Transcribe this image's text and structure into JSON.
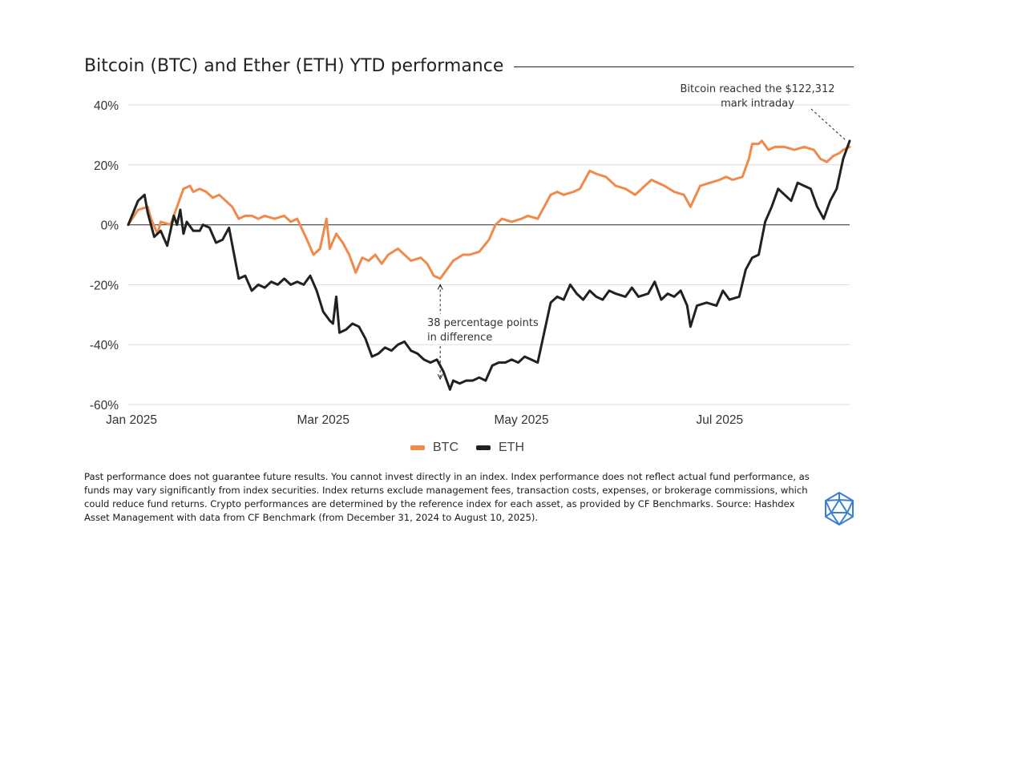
{
  "title": "Bitcoin (BTC) and Ether (ETH) YTD performance",
  "annotations": {
    "btc_high": "Bitcoin reached the $122,312 mark intraday",
    "difference": "38 percentage points in difference"
  },
  "footnote": "Past performance does not guarantee future results. You cannot invest directly in an index. Index performance does not reflect actual fund performance, as funds may vary significantly from index securities. Index returns exclude management fees, transaction costs, expenses, or brokerage commissions, which could reduce fund returns. Crypto performances are determined by the reference index for each asset, as provided by CF Benchmarks. Source: Hashdex Asset Management with data from CF Benchmark (from December 31, 2024 to August 10, 2025).",
  "logo_icon": "icosahedron-logo-icon",
  "colors": {
    "btc": "#f0894a",
    "eth": "#1e2220",
    "grid": "#dddddd",
    "zero": "#555555",
    "logo": "#3b7fd4"
  },
  "chart_data": {
    "type": "line",
    "title": "Bitcoin (BTC) and Ether (ETH) YTD performance",
    "xlabel": "",
    "ylabel": "",
    "x_ticks": [
      {
        "date": "2025-01-01",
        "label": "Jan 2025"
      },
      {
        "date": "2025-03-01",
        "label": "Mar 2025"
      },
      {
        "date": "2025-05-01",
        "label": "May 2025"
      },
      {
        "date": "2025-07-01",
        "label": "Jul 2025"
      }
    ],
    "xlim": [
      "2024-12-31",
      "2025-08-10"
    ],
    "ylim": [
      -60,
      40
    ],
    "y_ticks": [
      40,
      20,
      0,
      -20,
      -40,
      -60
    ],
    "y_tick_labels": [
      "40%",
      "20%",
      "0%",
      "-20%",
      "-40%",
      "-60%"
    ],
    "grid": true,
    "legend": "bottom-center",
    "series": [
      {
        "name": "BTC",
        "color": "#f0894a",
        "points": [
          [
            "2024-12-31",
            0
          ],
          [
            "2025-01-03",
            5
          ],
          [
            "2025-01-06",
            6
          ],
          [
            "2025-01-07",
            2
          ],
          [
            "2025-01-09",
            -3
          ],
          [
            "2025-01-10",
            1
          ],
          [
            "2025-01-13",
            0
          ],
          [
            "2025-01-15",
            6
          ],
          [
            "2025-01-17",
            12
          ],
          [
            "2025-01-19",
            13
          ],
          [
            "2025-01-20",
            11
          ],
          [
            "2025-01-22",
            12
          ],
          [
            "2025-01-24",
            11
          ],
          [
            "2025-01-26",
            9
          ],
          [
            "2025-01-28",
            10
          ],
          [
            "2025-01-30",
            8
          ],
          [
            "2025-02-01",
            6
          ],
          [
            "2025-02-03",
            2
          ],
          [
            "2025-02-05",
            3
          ],
          [
            "2025-02-07",
            3
          ],
          [
            "2025-02-09",
            2
          ],
          [
            "2025-02-11",
            3
          ],
          [
            "2025-02-14",
            2
          ],
          [
            "2025-02-17",
            3
          ],
          [
            "2025-02-19",
            1
          ],
          [
            "2025-02-21",
            2
          ],
          [
            "2025-02-24",
            -5
          ],
          [
            "2025-02-26",
            -10
          ],
          [
            "2025-02-28",
            -8
          ],
          [
            "2025-03-02",
            2
          ],
          [
            "2025-03-03",
            -8
          ],
          [
            "2025-03-05",
            -3
          ],
          [
            "2025-03-07",
            -6
          ],
          [
            "2025-03-09",
            -10
          ],
          [
            "2025-03-11",
            -16
          ],
          [
            "2025-03-13",
            -11
          ],
          [
            "2025-03-15",
            -12
          ],
          [
            "2025-03-17",
            -10
          ],
          [
            "2025-03-19",
            -13
          ],
          [
            "2025-03-21",
            -10
          ],
          [
            "2025-03-24",
            -8
          ],
          [
            "2025-03-26",
            -10
          ],
          [
            "2025-03-28",
            -12
          ],
          [
            "2025-03-31",
            -11
          ],
          [
            "2025-04-02",
            -13
          ],
          [
            "2025-04-04",
            -17
          ],
          [
            "2025-04-06",
            -18
          ],
          [
            "2025-04-08",
            -15
          ],
          [
            "2025-04-10",
            -12
          ],
          [
            "2025-04-13",
            -10
          ],
          [
            "2025-04-15",
            -10
          ],
          [
            "2025-04-18",
            -9
          ],
          [
            "2025-04-21",
            -5
          ],
          [
            "2025-04-23",
            0
          ],
          [
            "2025-04-25",
            2
          ],
          [
            "2025-04-28",
            1
          ],
          [
            "2025-05-01",
            2
          ],
          [
            "2025-05-03",
            3
          ],
          [
            "2025-05-06",
            2
          ],
          [
            "2025-05-08",
            6
          ],
          [
            "2025-05-10",
            10
          ],
          [
            "2025-05-12",
            11
          ],
          [
            "2025-05-14",
            10
          ],
          [
            "2025-05-17",
            11
          ],
          [
            "2025-05-19",
            12
          ],
          [
            "2025-05-22",
            18
          ],
          [
            "2025-05-24",
            17
          ],
          [
            "2025-05-27",
            16
          ],
          [
            "2025-05-30",
            13
          ],
          [
            "2025-06-02",
            12
          ],
          [
            "2025-06-05",
            10
          ],
          [
            "2025-06-07",
            12
          ],
          [
            "2025-06-10",
            15
          ],
          [
            "2025-06-12",
            14
          ],
          [
            "2025-06-14",
            13
          ],
          [
            "2025-06-17",
            11
          ],
          [
            "2025-06-20",
            10
          ],
          [
            "2025-06-22",
            6
          ],
          [
            "2025-06-25",
            13
          ],
          [
            "2025-06-28",
            14
          ],
          [
            "2025-07-01",
            15
          ],
          [
            "2025-07-03",
            16
          ],
          [
            "2025-07-05",
            15
          ],
          [
            "2025-07-08",
            16
          ],
          [
            "2025-07-10",
            22
          ],
          [
            "2025-07-11",
            27
          ],
          [
            "2025-07-13",
            27
          ],
          [
            "2025-07-14",
            28
          ],
          [
            "2025-07-16",
            25
          ],
          [
            "2025-07-18",
            26
          ],
          [
            "2025-07-21",
            26
          ],
          [
            "2025-07-24",
            25
          ],
          [
            "2025-07-27",
            26
          ],
          [
            "2025-07-30",
            25
          ],
          [
            "2025-08-01",
            22
          ],
          [
            "2025-08-03",
            21
          ],
          [
            "2025-08-05",
            23
          ],
          [
            "2025-08-07",
            24
          ],
          [
            "2025-08-08",
            25
          ],
          [
            "2025-08-10",
            26
          ]
        ]
      },
      {
        "name": "ETH",
        "color": "#1e2220",
        "points": [
          [
            "2024-12-31",
            0
          ],
          [
            "2025-01-03",
            8
          ],
          [
            "2025-01-05",
            10
          ],
          [
            "2025-01-06",
            4
          ],
          [
            "2025-01-08",
            -4
          ],
          [
            "2025-01-10",
            -2
          ],
          [
            "2025-01-12",
            -7
          ],
          [
            "2025-01-14",
            3
          ],
          [
            "2025-01-15",
            0
          ],
          [
            "2025-01-16",
            5
          ],
          [
            "2025-01-17",
            -3
          ],
          [
            "2025-01-18",
            1
          ],
          [
            "2025-01-20",
            -2
          ],
          [
            "2025-01-22",
            -2
          ],
          [
            "2025-01-23",
            0
          ],
          [
            "2025-01-25",
            -1
          ],
          [
            "2025-01-27",
            -6
          ],
          [
            "2025-01-29",
            -5
          ],
          [
            "2025-01-31",
            -1
          ],
          [
            "2025-02-03",
            -18
          ],
          [
            "2025-02-05",
            -17
          ],
          [
            "2025-02-07",
            -22
          ],
          [
            "2025-02-09",
            -20
          ],
          [
            "2025-02-11",
            -21
          ],
          [
            "2025-02-13",
            -19
          ],
          [
            "2025-02-15",
            -20
          ],
          [
            "2025-02-17",
            -18
          ],
          [
            "2025-02-19",
            -20
          ],
          [
            "2025-02-21",
            -19
          ],
          [
            "2025-02-23",
            -20
          ],
          [
            "2025-02-25",
            -17
          ],
          [
            "2025-02-27",
            -22
          ],
          [
            "2025-03-01",
            -29
          ],
          [
            "2025-03-03",
            -32
          ],
          [
            "2025-03-04",
            -33
          ],
          [
            "2025-03-05",
            -24
          ],
          [
            "2025-03-06",
            -36
          ],
          [
            "2025-03-08",
            -35
          ],
          [
            "2025-03-10",
            -33
          ],
          [
            "2025-03-12",
            -34
          ],
          [
            "2025-03-14",
            -38
          ],
          [
            "2025-03-16",
            -44
          ],
          [
            "2025-03-18",
            -43
          ],
          [
            "2025-03-20",
            -41
          ],
          [
            "2025-03-22",
            -42
          ],
          [
            "2025-03-24",
            -40
          ],
          [
            "2025-03-26",
            -39
          ],
          [
            "2025-03-28",
            -42
          ],
          [
            "2025-03-30",
            -43
          ],
          [
            "2025-04-01",
            -45
          ],
          [
            "2025-04-03",
            -46
          ],
          [
            "2025-04-05",
            -45
          ],
          [
            "2025-04-07",
            -49
          ],
          [
            "2025-04-09",
            -55
          ],
          [
            "2025-04-10",
            -52
          ],
          [
            "2025-04-12",
            -53
          ],
          [
            "2025-04-14",
            -52
          ],
          [
            "2025-04-16",
            -52
          ],
          [
            "2025-04-18",
            -51
          ],
          [
            "2025-04-20",
            -52
          ],
          [
            "2025-04-22",
            -47
          ],
          [
            "2025-04-24",
            -46
          ],
          [
            "2025-04-26",
            -46
          ],
          [
            "2025-04-28",
            -45
          ],
          [
            "2025-04-30",
            -46
          ],
          [
            "2025-05-02",
            -44
          ],
          [
            "2025-05-04",
            -45
          ],
          [
            "2025-05-06",
            -46
          ],
          [
            "2025-05-08",
            -36
          ],
          [
            "2025-05-10",
            -26
          ],
          [
            "2025-05-12",
            -24
          ],
          [
            "2025-05-14",
            -25
          ],
          [
            "2025-05-16",
            -20
          ],
          [
            "2025-05-18",
            -23
          ],
          [
            "2025-05-20",
            -25
          ],
          [
            "2025-05-22",
            -22
          ],
          [
            "2025-05-24",
            -24
          ],
          [
            "2025-05-26",
            -25
          ],
          [
            "2025-05-28",
            -22
          ],
          [
            "2025-05-30",
            -23
          ],
          [
            "2025-06-02",
            -24
          ],
          [
            "2025-06-04",
            -21
          ],
          [
            "2025-06-06",
            -24
          ],
          [
            "2025-06-09",
            -23
          ],
          [
            "2025-06-11",
            -19
          ],
          [
            "2025-06-13",
            -25
          ],
          [
            "2025-06-15",
            -23
          ],
          [
            "2025-06-17",
            -24
          ],
          [
            "2025-06-19",
            -22
          ],
          [
            "2025-06-21",
            -27
          ],
          [
            "2025-06-22",
            -34
          ],
          [
            "2025-06-24",
            -27
          ],
          [
            "2025-06-27",
            -26
          ],
          [
            "2025-06-30",
            -27
          ],
          [
            "2025-07-02",
            -22
          ],
          [
            "2025-07-04",
            -25
          ],
          [
            "2025-07-07",
            -24
          ],
          [
            "2025-07-09",
            -15
          ],
          [
            "2025-07-11",
            -11
          ],
          [
            "2025-07-13",
            -10
          ],
          [
            "2025-07-15",
            1
          ],
          [
            "2025-07-17",
            6
          ],
          [
            "2025-07-19",
            12
          ],
          [
            "2025-07-21",
            10
          ],
          [
            "2025-07-23",
            8
          ],
          [
            "2025-07-25",
            14
          ],
          [
            "2025-07-27",
            13
          ],
          [
            "2025-07-29",
            12
          ],
          [
            "2025-07-31",
            6
          ],
          [
            "2025-08-02",
            2
          ],
          [
            "2025-08-04",
            8
          ],
          [
            "2025-08-06",
            12
          ],
          [
            "2025-08-08",
            22
          ],
          [
            "2025-08-10",
            28
          ]
        ]
      }
    ]
  }
}
